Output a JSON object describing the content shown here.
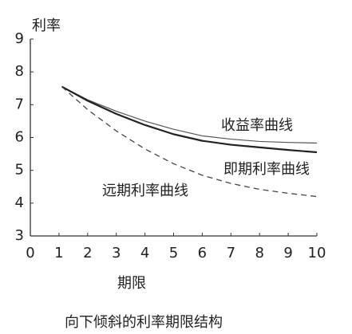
{
  "chart_data": {
    "type": "line",
    "caption": "向下倾斜的利率期限结构",
    "y_label": "利率",
    "x_label": "期限",
    "x": [
      1.1,
      2,
      3,
      4,
      5,
      6,
      7,
      8,
      9,
      10
    ],
    "series": [
      {
        "name": "收益率曲线",
        "color": "#555555",
        "width": 1.2,
        "dash": false,
        "values": [
          7.55,
          7.15,
          6.8,
          6.5,
          6.25,
          6.05,
          5.95,
          5.88,
          5.85,
          5.83
        ]
      },
      {
        "name": "即期利率曲线",
        "color": "#222222",
        "width": 2.2,
        "dash": false,
        "values": [
          7.55,
          7.12,
          6.72,
          6.38,
          6.1,
          5.9,
          5.78,
          5.7,
          5.62,
          5.55
        ]
      },
      {
        "name": "远期利率曲线",
        "color": "#444444",
        "width": 1.3,
        "dash": true,
        "values": [
          7.55,
          6.85,
          6.2,
          5.65,
          5.2,
          4.85,
          4.6,
          4.42,
          4.3,
          4.2
        ]
      }
    ],
    "xlim": [
      0,
      10
    ],
    "xticks": [
      0,
      1,
      2,
      3,
      4,
      5,
      6,
      7,
      8,
      9,
      10
    ],
    "ylim": [
      3,
      9
    ],
    "yticks": [
      3,
      4,
      5,
      6,
      7,
      8,
      9
    ],
    "grid": false
  }
}
